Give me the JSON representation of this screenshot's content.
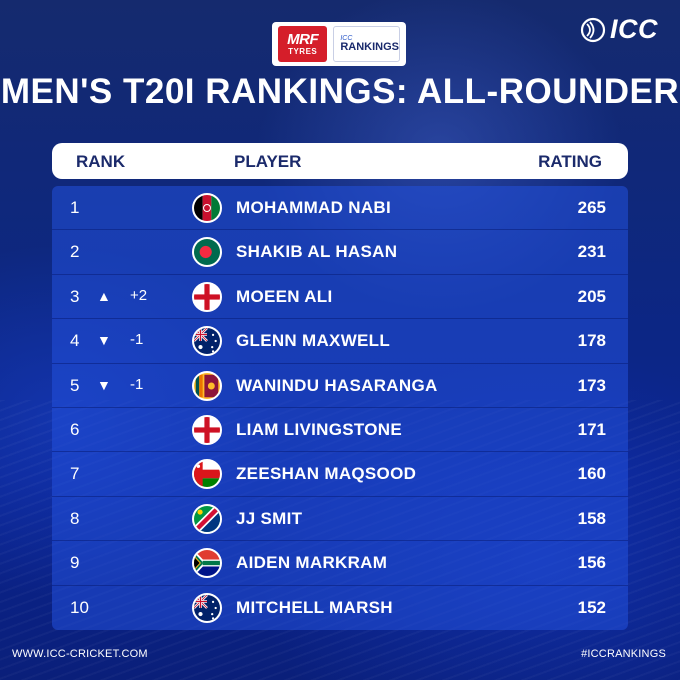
{
  "sponsor": {
    "mrf_text": "MRF",
    "tyres_text": "TYRES",
    "icc_small": "ICC",
    "rankings_text": "RANKINGS"
  },
  "brand": {
    "text": "ICC"
  },
  "title": "MEN'S T20I RANKINGS: ALL-ROUNDER",
  "headers": {
    "rank": "RANK",
    "player": "PLAYER",
    "rating": "RATING"
  },
  "colors": {
    "up": "#ffffff",
    "down": "#ffffff",
    "header_text": "#1b2a6b"
  },
  "rows": [
    {
      "rank": "1",
      "arrow": "",
      "change": "",
      "name": "MOHAMMAD NABI",
      "rating": "265",
      "flag": "afghanistan-flag-icon"
    },
    {
      "rank": "2",
      "arrow": "",
      "change": "",
      "name": "SHAKIB AL HASAN",
      "rating": "231",
      "flag": "bangladesh-flag-icon"
    },
    {
      "rank": "3",
      "arrow": "▲",
      "change": "+2",
      "name": "MOEEN ALI",
      "rating": "205",
      "flag": "england-flag-icon"
    },
    {
      "rank": "4",
      "arrow": "▼",
      "change": "-1",
      "name": "GLENN MAXWELL",
      "rating": "178",
      "flag": "australia-flag-icon"
    },
    {
      "rank": "5",
      "arrow": "▼",
      "change": "-1",
      "name": "WANINDU HASARANGA",
      "rating": "173",
      "flag": "sri-lanka-flag-icon"
    },
    {
      "rank": "6",
      "arrow": "",
      "change": "",
      "name": "LIAM LIVINGSTONE",
      "rating": "171",
      "flag": "england-flag-icon"
    },
    {
      "rank": "7",
      "arrow": "",
      "change": "",
      "name": "ZEESHAN MAQSOOD",
      "rating": "160",
      "flag": "oman-flag-icon"
    },
    {
      "rank": "8",
      "arrow": "",
      "change": "",
      "name": "JJ SMIT",
      "rating": "158",
      "flag": "namibia-flag-icon"
    },
    {
      "rank": "9",
      "arrow": "",
      "change": "",
      "name": "AIDEN MARKRAM",
      "rating": "156",
      "flag": "south-africa-flag-icon"
    },
    {
      "rank": "10",
      "arrow": "",
      "change": "",
      "name": "MITCHELL MARSH",
      "rating": "152",
      "flag": "australia-flag-icon"
    }
  ],
  "footer": {
    "website": "WWW.ICC-CRICKET.COM",
    "hashtag": "#ICCRANKINGS"
  }
}
